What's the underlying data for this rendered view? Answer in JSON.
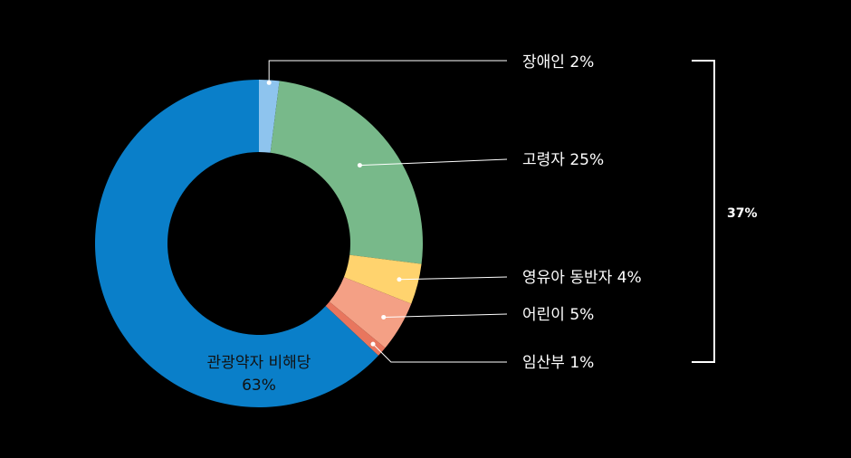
{
  "chart_data": {
    "type": "pie",
    "variant": "donut",
    "slices": [
      {
        "key": "disabled",
        "label": "장애인 2%",
        "value": 2,
        "color": "#8ec4ee"
      },
      {
        "key": "elderly",
        "label": "고령자 25%",
        "value": 25,
        "color": "#78b98a"
      },
      {
        "key": "infant",
        "label": "영유아 동반자 4%",
        "value": 4,
        "color": "#ffd36e"
      },
      {
        "key": "children",
        "label": "어린이 5%",
        "value": 5,
        "color": "#f4a085"
      },
      {
        "key": "pregnant",
        "label": "임산부 1%",
        "value": 1,
        "color": "#e8765e"
      },
      {
        "key": "non_vulnerable",
        "label": "관광약자 비해당",
        "sub_label": "63%",
        "value": 63,
        "color": "#0a7fc9"
      }
    ],
    "bracket_label": "37%",
    "background": "#000000"
  }
}
